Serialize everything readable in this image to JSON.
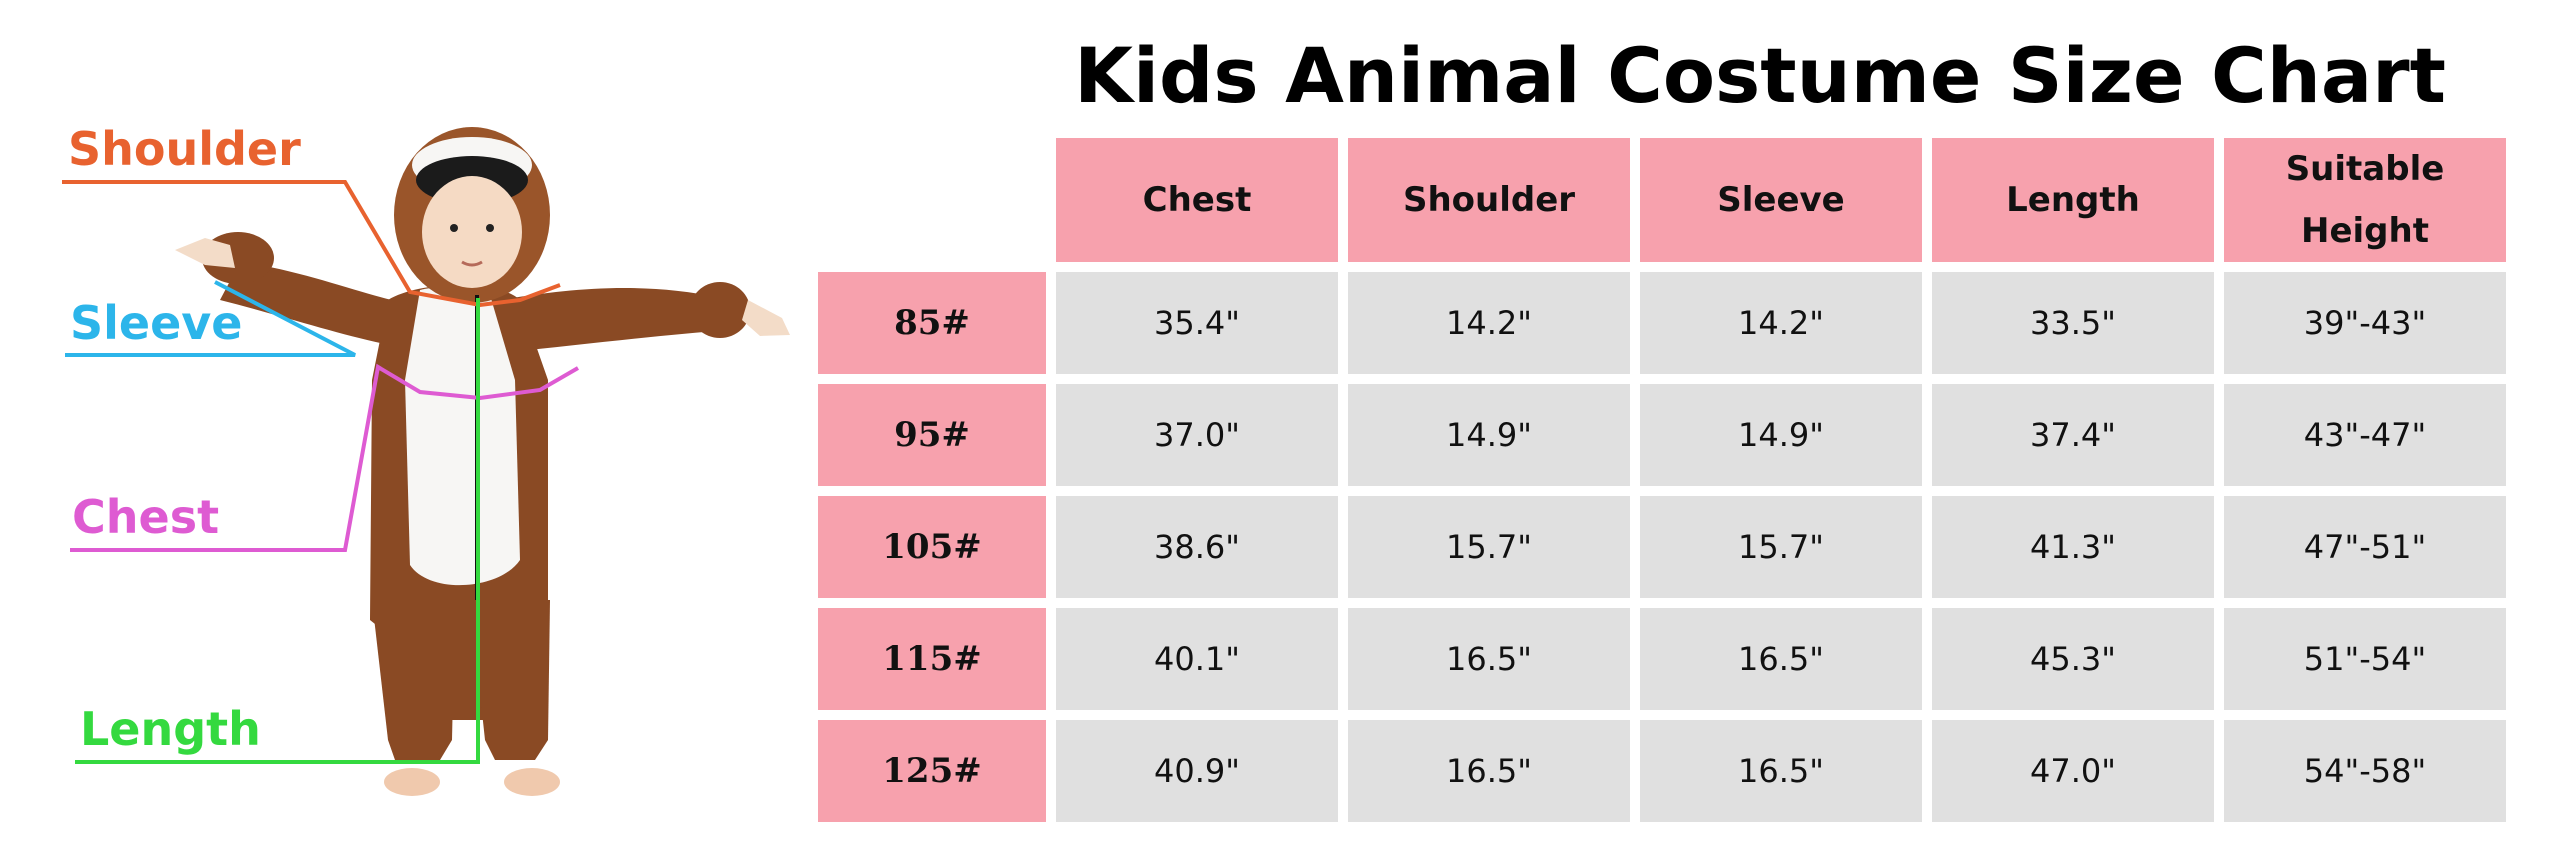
{
  "title": "Kids Animal Costume Size Chart",
  "measurement_labels": {
    "shoulder": "Shoulder",
    "sleeve": "Sleeve",
    "chest": "Chest",
    "length": "Length"
  },
  "colors": {
    "shoulder": "#e8622f",
    "sleeve": "#2cb5ea",
    "chest": "#de5bd2",
    "length": "#34d93f",
    "header_bg": "#f7a1ad",
    "cell_bg": "#e0e0e0"
  },
  "table": {
    "columns": [
      "Chest",
      "Shoulder",
      "Sleeve",
      "Length",
      "Suitable Height"
    ],
    "rows": [
      {
        "size": "85#",
        "cells": [
          "35.4\"",
          "14.2\"",
          "14.2\"",
          "33.5\"",
          "39\"-43\""
        ]
      },
      {
        "size": "95#",
        "cells": [
          "37.0\"",
          "14.9\"",
          "14.9\"",
          "37.4\"",
          "43\"-47\""
        ]
      },
      {
        "size": "105#",
        "cells": [
          "38.6\"",
          "15.7\"",
          "15.7\"",
          "41.3\"",
          "47\"-51\""
        ]
      },
      {
        "size": "115#",
        "cells": [
          "40.1\"",
          "16.5\"",
          "16.5\"",
          "45.3\"",
          "51\"-54\""
        ]
      },
      {
        "size": "125#",
        "cells": [
          "40.9\"",
          "16.5\"",
          "16.5\"",
          "47.0\"",
          "54\"-58\""
        ]
      }
    ]
  }
}
